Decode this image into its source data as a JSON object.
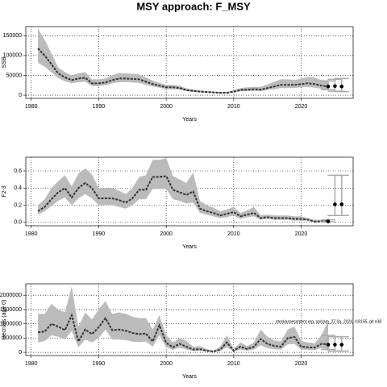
{
  "chart_data": [
    {
      "type": "line",
      "title": "MSY approach: F_MSY",
      "ylabel": "SSB",
      "xlabel": "Years",
      "xlim": [
        1979.2,
        2027.7
      ],
      "xticks": [
        1980,
        1990,
        2000,
        2010,
        2020
      ],
      "ylim": [
        -8000,
        173000
      ],
      "yticks": [
        0,
        50000,
        100000,
        150000
      ],
      "grid": true,
      "color": "#333333",
      "band_color": "#bbbbbb",
      "x": [
        1981,
        1982,
        1983,
        1984,
        1985,
        1986,
        1987,
        1988,
        1989,
        1990,
        1991,
        1992,
        1993,
        1994,
        1995,
        1996,
        1997,
        1998,
        1999,
        2000,
        2001,
        2002,
        2003,
        2004,
        2005,
        2006,
        2007,
        2008,
        2009,
        2010,
        2011,
        2012,
        2013,
        2014,
        2015,
        2016,
        2017,
        2018,
        2019,
        2020,
        2021,
        2022,
        2023,
        2024
      ],
      "values": [
        118000,
        100000,
        78000,
        55000,
        45000,
        38000,
        42000,
        44000,
        30000,
        30000,
        32000,
        38000,
        42000,
        42000,
        41000,
        40000,
        34000,
        28000,
        24000,
        20000,
        20000,
        18000,
        13000,
        11000,
        9000,
        8000,
        7000,
        6000,
        6000,
        9000,
        13000,
        14000,
        15000,
        14000,
        18000,
        22000,
        26000,
        26000,
        26000,
        28000,
        30000,
        28000,
        24000,
        22000
      ],
      "upper": [
        168000,
        140000,
        105000,
        70000,
        58000,
        50000,
        55000,
        58000,
        40000,
        40000,
        42000,
        50000,
        56000,
        55000,
        54000,
        52000,
        45000,
        37000,
        31000,
        26000,
        26000,
        24000,
        17000,
        14000,
        12000,
        11000,
        9000,
        8000,
        8000,
        12000,
        18000,
        20000,
        21000,
        21000,
        27000,
        34000,
        40000,
        40000,
        38000,
        42000,
        46000,
        44000,
        38000,
        36000
      ],
      "lower": [
        82000,
        72000,
        58000,
        43000,
        35000,
        30000,
        33000,
        34000,
        23000,
        23000,
        25000,
        30000,
        33000,
        33000,
        32000,
        31000,
        26000,
        22000,
        19000,
        15000,
        15000,
        14000,
        10000,
        8000,
        7000,
        6000,
        5000,
        4500,
        4500,
        7000,
        10000,
        10000,
        11000,
        10000,
        13000,
        15000,
        18000,
        18000,
        18000,
        20000,
        21000,
        19000,
        16000,
        14000
      ],
      "forecast": {
        "x": [
          2024,
          2025,
          2026
        ],
        "values": [
          22000,
          23000,
          22000
        ],
        "lower": [
          14000,
          10000,
          9000
        ],
        "upper": [
          36000,
          40000,
          42000
        ]
      }
    },
    {
      "type": "line",
      "ylabel": "F2-3",
      "xlabel": "Years",
      "xlim": [
        1979.2,
        2027.7
      ],
      "xticks": [
        1980,
        1990,
        2000,
        2010,
        2020
      ],
      "ylim": [
        -0.04,
        0.76
      ],
      "yticks": [
        {
          "value": 0,
          "label": "0.0"
        },
        0.2,
        0.4,
        0.6
      ],
      "grid": true,
      "color": "#333333",
      "band_color": "#bbbbbb",
      "x": [
        1981,
        1982,
        1983,
        1984,
        1985,
        1986,
        1987,
        1988,
        1989,
        1990,
        1991,
        1992,
        1993,
        1994,
        1995,
        1996,
        1997,
        1998,
        1999,
        2000,
        2001,
        2002,
        2003,
        2004,
        2005,
        2006,
        2007,
        2008,
        2009,
        2010,
        2011,
        2012,
        2013,
        2014,
        2015,
        2016,
        2017,
        2018,
        2019,
        2020,
        2021,
        2022,
        2023,
        2024
      ],
      "values": [
        0.13,
        0.18,
        0.27,
        0.35,
        0.4,
        0.29,
        0.4,
        0.46,
        0.4,
        0.28,
        0.28,
        0.28,
        0.26,
        0.23,
        0.28,
        0.38,
        0.38,
        0.53,
        0.53,
        0.54,
        0.38,
        0.35,
        0.32,
        0.36,
        0.16,
        0.13,
        0.11,
        0.08,
        0.1,
        0.12,
        0.07,
        0.09,
        0.11,
        0.05,
        0.06,
        0.05,
        0.05,
        0.05,
        0.04,
        0.04,
        0.03,
        0.01,
        0.01,
        0.02
      ],
      "upper": [
        0.2,
        0.27,
        0.4,
        0.48,
        0.55,
        0.42,
        0.57,
        0.63,
        0.56,
        0.4,
        0.4,
        0.4,
        0.37,
        0.33,
        0.4,
        0.53,
        0.55,
        0.73,
        0.73,
        0.75,
        0.54,
        0.5,
        0.46,
        0.58,
        0.25,
        0.2,
        0.17,
        0.13,
        0.15,
        0.18,
        0.11,
        0.14,
        0.18,
        0.08,
        0.09,
        0.08,
        0.08,
        0.08,
        0.07,
        0.07,
        0.05,
        0.03,
        0.03,
        0.04
      ],
      "lower": [
        0.09,
        0.13,
        0.19,
        0.25,
        0.29,
        0.2,
        0.28,
        0.33,
        0.28,
        0.2,
        0.2,
        0.2,
        0.18,
        0.16,
        0.2,
        0.27,
        0.27,
        0.39,
        0.39,
        0.39,
        0.27,
        0.25,
        0.22,
        0.23,
        0.11,
        0.09,
        0.07,
        0.05,
        0.06,
        0.08,
        0.04,
        0.06,
        0.07,
        0.03,
        0.04,
        0.03,
        0.03,
        0.03,
        0.02,
        0.02,
        0.02,
        0.005,
        0.005,
        0.01
      ],
      "forecast": {
        "x": [
          2024,
          2025,
          2026
        ],
        "values": [
          0.01,
          0.21,
          0.21
        ],
        "lower": [
          0.005,
          0.08,
          0.08
        ],
        "upper": [
          0.03,
          0.55,
          0.55
        ]
      }
    },
    {
      "type": "line",
      "ylabel": "Recruits (age 0)",
      "xlabel": "Years",
      "annotation": "stockassessment.org, sp/sam_27.0a, 2024, r18155, git e38",
      "xlim": [
        1979.2,
        2027.7
      ],
      "xticks": [
        1980,
        1990,
        2000,
        2010,
        2020
      ],
      "ylim": [
        -110000,
        2400000
      ],
      "yticks": [
        0,
        500000,
        1000000,
        1500000,
        2000000
      ],
      "grid": true,
      "color": "#333333",
      "band_color": "#bbbbbb",
      "x": [
        1981,
        1982,
        1983,
        1984,
        1985,
        1986,
        1987,
        1988,
        1989,
        1990,
        1991,
        1992,
        1993,
        1994,
        1995,
        1996,
        1997,
        1998,
        1999,
        2000,
        2001,
        2002,
        2003,
        2004,
        2005,
        2006,
        2007,
        2008,
        2009,
        2010,
        2011,
        2012,
        2013,
        2014,
        2015,
        2016,
        2017,
        2018,
        2019,
        2020,
        2021,
        2022,
        2023,
        2024
      ],
      "values": [
        700000,
        730000,
        1000000,
        900000,
        780000,
        1300000,
        380000,
        800000,
        640000,
        880000,
        1200000,
        780000,
        800000,
        760000,
        680000,
        640000,
        660000,
        380000,
        950000,
        330000,
        180000,
        300000,
        200000,
        100000,
        110000,
        60000,
        30000,
        100000,
        350000,
        60000,
        200000,
        120000,
        200000,
        470000,
        300000,
        230000,
        200000,
        500000,
        540000,
        200000,
        180000,
        170000,
        300000,
        280000
      ],
      "upper": [
        1350000,
        1350000,
        1700000,
        1500000,
        1400000,
        2300000,
        900000,
        1400000,
        1150000,
        1500000,
        1800000,
        1350000,
        1400000,
        1350000,
        1250000,
        1200000,
        1200000,
        800000,
        1300000,
        600000,
        350000,
        500000,
        400000,
        200000,
        220000,
        120000,
        60000,
        200000,
        600000,
        120000,
        350000,
        220000,
        350000,
        800000,
        550000,
        420000,
        380000,
        800000,
        900000,
        400000,
        350000,
        320000,
        600000,
        1100000
      ],
      "lower": [
        350000,
        400000,
        600000,
        550000,
        450000,
        750000,
        180000,
        450000,
        350000,
        500000,
        800000,
        450000,
        450000,
        430000,
        380000,
        360000,
        380000,
        200000,
        600000,
        180000,
        90000,
        170000,
        100000,
        50000,
        55000,
        30000,
        15000,
        50000,
        180000,
        30000,
        100000,
        60000,
        100000,
        250000,
        150000,
        110000,
        100000,
        280000,
        300000,
        100000,
        90000,
        80000,
        150000,
        100000
      ],
      "forecast": {
        "x": [
          2024,
          2025,
          2026
        ],
        "values": [
          270000,
          270000,
          270000
        ],
        "lower": [
          100000,
          50000,
          50000
        ],
        "upper": [
          600000,
          550000,
          550000
        ]
      }
    }
  ]
}
